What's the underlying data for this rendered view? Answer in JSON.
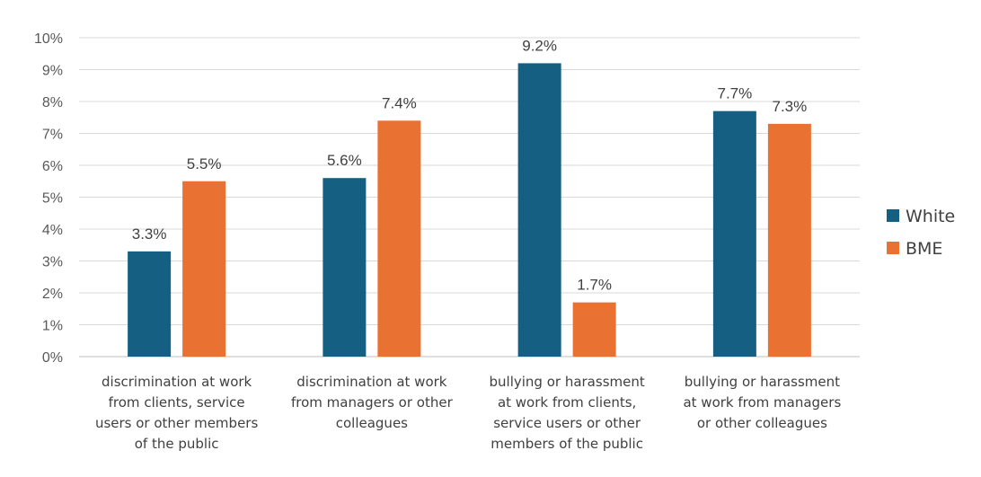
{
  "chart_data": {
    "type": "bar",
    "title": "",
    "xlabel": "",
    "ylabel": "",
    "ylim": [
      0,
      10
    ],
    "y_ticks": [
      "0%",
      "1%",
      "2%",
      "3%",
      "4%",
      "5%",
      "6%",
      "7%",
      "8%",
      "9%",
      "10%"
    ],
    "categories": [
      "discrimination at work from clients, service users or other members of the public",
      "discrimination at work from managers or other colleagues",
      "bullying or harassment at work from clients, service users or other members of the public",
      "bullying or harassment at work from managers or other colleagues"
    ],
    "category_lines": [
      [
        "discrimination at work",
        "from clients, service",
        "users or other members",
        "of the public"
      ],
      [
        "discrimination at work",
        "from managers or other",
        "colleagues"
      ],
      [
        "bullying or harassment",
        "at work from clients,",
        "service users or other",
        "members of the public"
      ],
      [
        "bullying or harassment",
        "at work from managers",
        "or other colleagues"
      ]
    ],
    "series": [
      {
        "name": "White",
        "color": "#156082",
        "values": [
          3.3,
          5.6,
          9.2,
          7.7
        ],
        "labels": [
          "3.3%",
          "5.6%",
          "9.2%",
          "7.7%"
        ]
      },
      {
        "name": "BME",
        "color": "#E97132",
        "values": [
          5.5,
          7.4,
          1.7,
          7.3
        ],
        "labels": [
          "5.5%",
          "7.4%",
          "1.7%",
          "7.3%"
        ]
      }
    ],
    "grid": true,
    "legend_position": "right"
  }
}
